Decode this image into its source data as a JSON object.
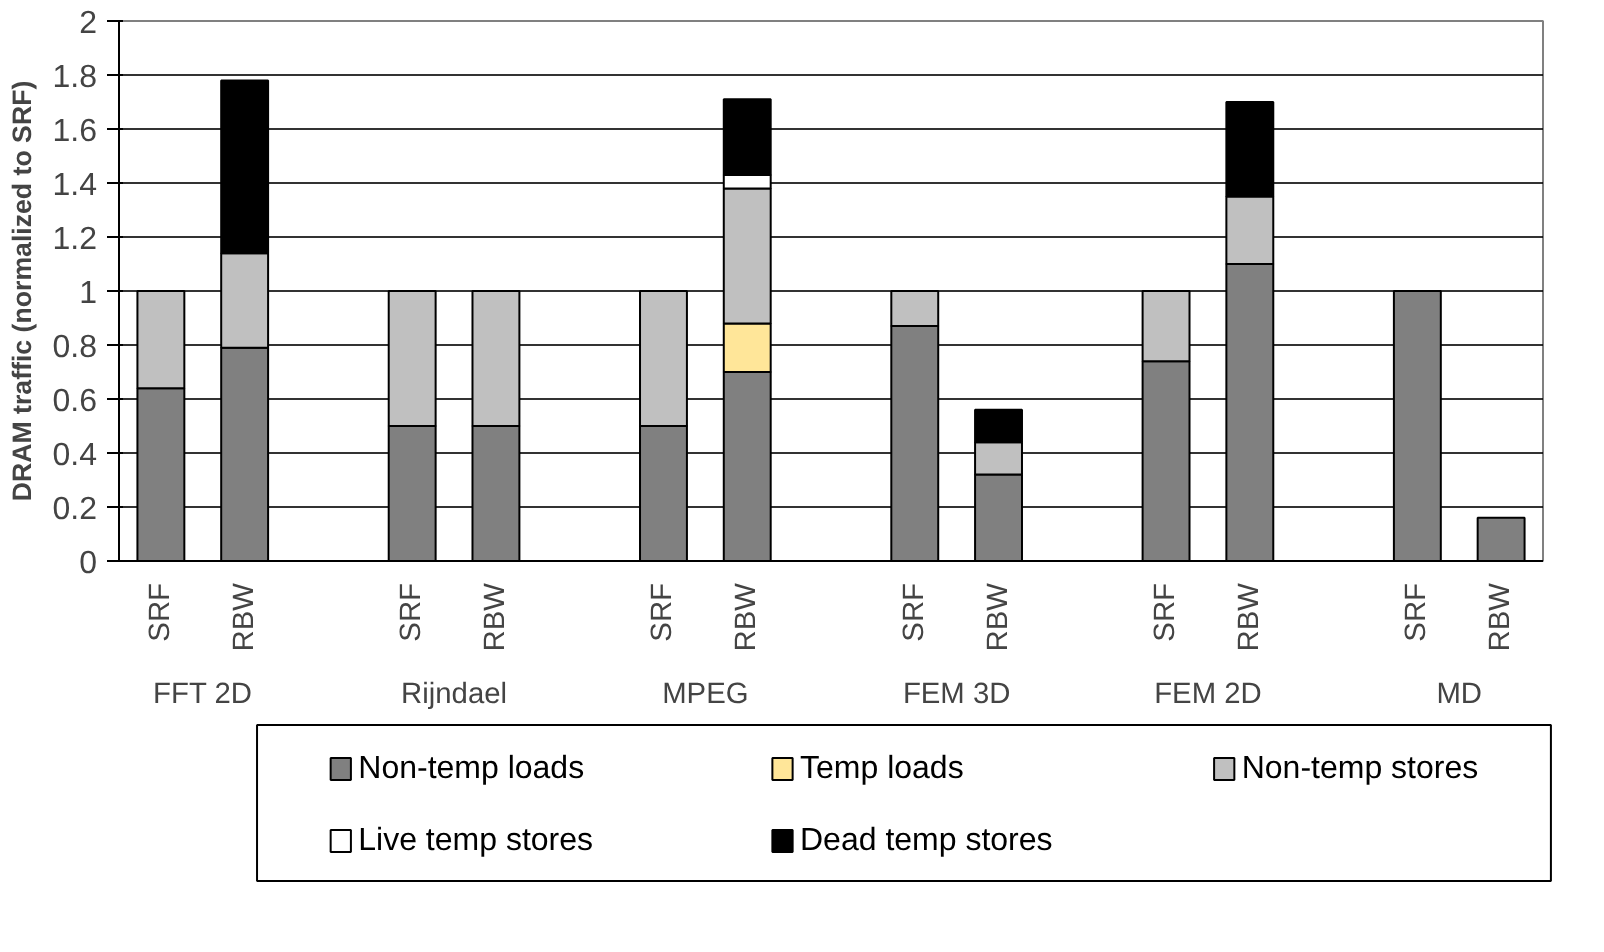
{
  "chart_data": {
    "type": "bar",
    "stacked": true,
    "ylabel": "DRAM traffic (normalized to SRF)",
    "categories": [
      "SRF",
      "RBW",
      null,
      "SRF",
      "RBW",
      null,
      "SRF",
      "RBW",
      null,
      "SRF",
      "RBW",
      null,
      "SRF",
      "RBW",
      null,
      "SRF",
      "RBW"
    ],
    "annotations": [
      "FFT 2D",
      "Rijndael",
      "MPEG",
      "FEM 3D",
      "FEM 2D",
      "MD"
    ],
    "series": [
      {
        "name": "Non-temp loads",
        "color": "#808080",
        "values": [
          0.64,
          0.79,
          null,
          0.5,
          0.5,
          null,
          0.5,
          0.7,
          null,
          0.87,
          0.32,
          null,
          0.74,
          1.1,
          null,
          1.0,
          0.16
        ]
      },
      {
        "name": "Temp loads",
        "color": "#ffe699",
        "values": [
          null,
          null,
          null,
          null,
          null,
          null,
          null,
          0.18,
          null,
          null,
          null,
          null,
          null,
          null,
          null,
          null,
          null
        ]
      },
      {
        "name": "Non-temp stores",
        "color": "#c0c0c0",
        "values": [
          0.36,
          0.35,
          null,
          0.5,
          0.5,
          null,
          0.5,
          0.5,
          null,
          0.13,
          0.12,
          null,
          0.26,
          0.25,
          null,
          null,
          null
        ]
      },
      {
        "name": "Live temp stores",
        "color": "#ffffff",
        "values": [
          null,
          null,
          null,
          null,
          null,
          null,
          null,
          0.05,
          null,
          null,
          null,
          null,
          null,
          null,
          null,
          null,
          null
        ]
      },
      {
        "name": "Dead temp stores",
        "color": "#000000",
        "values": [
          null,
          0.64,
          null,
          null,
          null,
          null,
          null,
          0.28,
          null,
          null,
          0.12,
          null,
          null,
          0.35,
          null,
          null,
          null
        ]
      }
    ],
    "ylim": [
      0,
      2
    ],
    "yticks": [
      0,
      0.2,
      0.4,
      0.6,
      0.8,
      1,
      1.2,
      1.4,
      1.6,
      1.8,
      2
    ],
    "grid": "y",
    "legend": "bottom"
  }
}
